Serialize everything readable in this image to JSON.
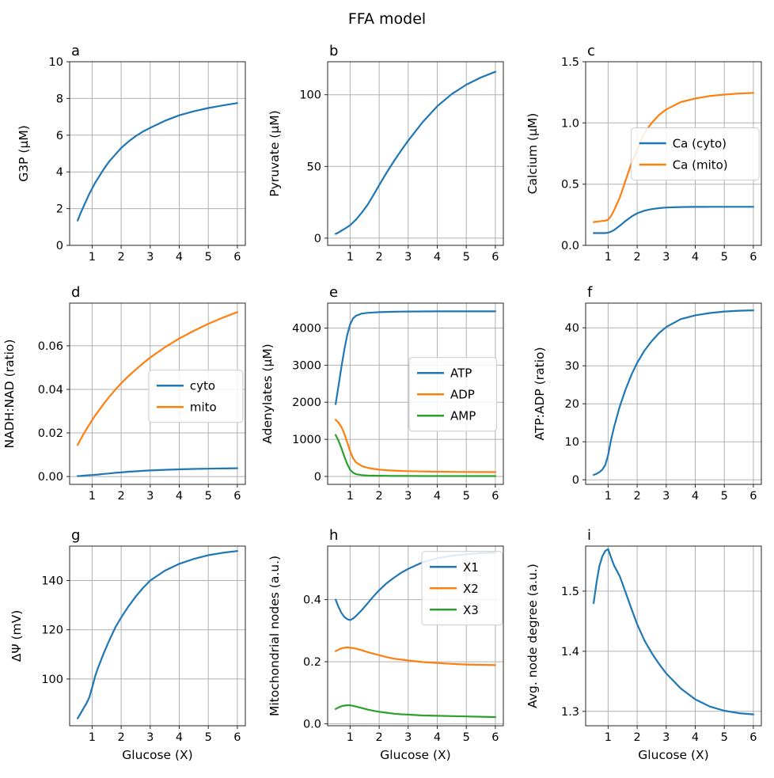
{
  "title": "FFA model",
  "colors": {
    "C0": "#1f77b4",
    "C1": "#ff7f0e",
    "C2": "#2ca02c",
    "grid": "#b0b0b0",
    "spine": "#262626",
    "legend_border": "#cccccc",
    "background": "#ffffff"
  },
  "chart_data": {
    "type": "line",
    "suptitle": "FFA model",
    "xlabel": "Glucose (X)",
    "xlim": [
      0.225,
      6.275
    ],
    "x_shared": [
      0.5,
      0.6,
      0.7,
      0.8,
      0.9,
      1.0,
      1.1,
      1.2,
      1.4,
      1.6,
      1.8,
      2.0,
      2.25,
      2.5,
      2.75,
      3.0,
      3.5,
      4.0,
      4.5,
      5.0,
      5.5,
      6.0
    ],
    "xtick_values": [
      1,
      2,
      3,
      4,
      5,
      6
    ],
    "xtick_labels": [
      "1",
      "2",
      "3",
      "4",
      "5",
      "6"
    ],
    "grid": true,
    "panels": [
      {
        "id": "a",
        "ylabel": "G3P (µM)",
        "xlabel": "",
        "ylim": [
          0,
          10
        ],
        "ytick_values": [
          0,
          2,
          4,
          6,
          8,
          10
        ],
        "ytick_labels": [
          "0",
          "2",
          "4",
          "6",
          "8",
          "10"
        ],
        "legend": null,
        "series": [
          {
            "name": "G3P",
            "color": "#1f77b4",
            "y": [
              1.35,
              1.75,
              2.1,
              2.45,
              2.8,
              3.1,
              3.4,
              3.65,
              4.15,
              4.6,
              4.95,
              5.3,
              5.65,
              5.95,
              6.2,
              6.4,
              6.78,
              7.08,
              7.3,
              7.48,
              7.62,
              7.75
            ]
          }
        ]
      },
      {
        "id": "b",
        "ylabel": "Pyruvate (µM)",
        "xlabel": "",
        "ylim": [
          -5,
          123
        ],
        "ytick_values": [
          0,
          50,
          100
        ],
        "ytick_labels": [
          "0",
          "50",
          "100"
        ],
        "legend": null,
        "series": [
          {
            "name": "Pyruvate",
            "color": "#1f77b4",
            "y": [
              3,
              4,
              5.2,
              6.4,
              7.7,
              9,
              11,
              13,
              17.8,
              23.3,
              30,
              37,
              45.5,
              53.5,
              61,
              68,
              81,
              92,
              100.5,
              107,
              112,
              116
            ]
          }
        ]
      },
      {
        "id": "c",
        "ylabel": "Calcium (µM)",
        "xlabel": "",
        "ylim": [
          0,
          1.5
        ],
        "ytick_values": [
          0.0,
          0.5,
          1.0,
          1.5
        ],
        "ytick_labels": [
          "0.0",
          "0.5",
          "1.0",
          "1.5"
        ],
        "legend": {
          "x": 0.26,
          "y": 0.36
        },
        "series": [
          {
            "name": "Ca (cyto)",
            "color": "#1f77b4",
            "y": [
              0.1,
              0.1,
              0.1,
              0.1,
              0.1,
              0.104,
              0.112,
              0.125,
              0.16,
              0.2,
              0.235,
              0.262,
              0.283,
              0.296,
              0.304,
              0.309,
              0.313,
              0.314,
              0.315,
              0.315,
              0.315,
              0.315
            ]
          },
          {
            "name": "Ca (mito)",
            "color": "#ff7f0e",
            "y": [
              0.19,
              0.193,
              0.196,
              0.199,
              0.202,
              0.21,
              0.24,
              0.285,
              0.39,
              0.53,
              0.67,
              0.78,
              0.92,
              1.0,
              1.065,
              1.11,
              1.17,
              1.2,
              1.22,
              1.232,
              1.24,
              1.245
            ]
          }
        ]
      },
      {
        "id": "d",
        "ylabel": "NADH:NAD (ratio)",
        "xlabel": "",
        "ylim": [
          -0.0036,
          0.0796
        ],
        "ytick_values": [
          0.0,
          0.02,
          0.04,
          0.06
        ],
        "ytick_labels": [
          "0.00",
          "0.02",
          "0.04",
          "0.06"
        ],
        "legend": {
          "x": 0.45,
          "y": 0.37
        },
        "series": [
          {
            "name": "cyto",
            "color": "#1f77b4",
            "y": [
              0.0002,
              0.0003,
              0.0004,
              0.0005,
              0.0006,
              0.0007,
              0.0008,
              0.0009,
              0.0012,
              0.0014,
              0.0017,
              0.0019,
              0.0022,
              0.0024,
              0.0026,
              0.0028,
              0.0031,
              0.0033,
              0.0035,
              0.0036,
              0.0037,
              0.0038
            ]
          },
          {
            "name": "mito",
            "color": "#ff7f0e",
            "y": [
              0.0145,
              0.017,
              0.0194,
              0.0216,
              0.0238,
              0.0259,
              0.0279,
              0.0298,
              0.0334,
              0.0368,
              0.0399,
              0.0428,
              0.0461,
              0.0491,
              0.052,
              0.0546,
              0.0593,
              0.0634,
              0.0669,
              0.0701,
              0.0729,
              0.0755
            ]
          }
        ]
      },
      {
        "id": "e",
        "ylabel": "Adenylates (µM)",
        "xlabel": "",
        "ylim": [
          -214,
          4672
        ],
        "ytick_values": [
          0,
          1000,
          2000,
          3000,
          4000
        ],
        "ytick_labels": [
          "0",
          "1000",
          "2000",
          "3000",
          "4000"
        ],
        "legend": {
          "x": 0.464,
          "y": 0.3
        },
        "series": [
          {
            "name": "ATP",
            "color": "#1f77b4",
            "y": [
              1950,
              2450,
              2950,
              3420,
              3820,
              4100,
              4260,
              4330,
              4390,
              4410,
              4420,
              4428,
              4435,
              4440,
              4443,
              4445,
              4448,
              4450,
              4450,
              4450,
              4450,
              4450
            ]
          },
          {
            "name": "ADP",
            "color": "#ff7f0e",
            "y": [
              1530,
              1450,
              1330,
              1150,
              920,
              680,
              490,
              380,
              280,
              235,
              205,
              185,
              168,
              157,
              149,
              143,
              134,
              128,
              124,
              121,
              119,
              117
            ]
          },
          {
            "name": "AMP",
            "color": "#2ca02c",
            "y": [
              1120,
              960,
              760,
              540,
              330,
              180,
              100,
              62,
              35,
              26,
              21,
              18,
              16,
              14,
              13,
              12,
              11,
              10,
              10,
              9,
              9,
              9
            ]
          }
        ]
      },
      {
        "id": "f",
        "ylabel": "ATP:ADP (ratio)",
        "xlabel": "",
        "ylim": [
          -1.2,
          46.5
        ],
        "ytick_values": [
          0,
          10,
          20,
          30,
          40
        ],
        "ytick_labels": [
          "0",
          "10",
          "20",
          "30",
          "40"
        ],
        "legend": null,
        "series": [
          {
            "name": "ATP:ADP",
            "color": "#1f77b4",
            "y": [
              1.3,
              1.6,
              2.0,
              2.7,
              3.9,
              6.5,
              10.5,
              13.8,
              19.3,
              23.8,
              27.6,
              30.8,
              34.0,
              36.5,
              38.6,
              40.2,
              42.3,
              43.3,
              43.9,
              44.3,
              44.5,
              44.6
            ]
          }
        ]
      },
      {
        "id": "g",
        "ylabel": "ΔΨ (mV)",
        "xlabel": "Glucose (X)",
        "ylim": [
          81,
          154
        ],
        "ytick_values": [
          100,
          120,
          140
        ],
        "ytick_labels": [
          "100",
          "120",
          "140"
        ],
        "legend": null,
        "series": [
          {
            "name": "DeltaPsi",
            "color": "#1f77b4",
            "y": [
              84,
              86,
              88,
              90,
              92.5,
              96.5,
              101,
              104.5,
              110.5,
              116,
              121,
              125,
              129.5,
              133.5,
              137,
              140,
              144,
              146.8,
              148.8,
              150.3,
              151.3,
              152
            ]
          }
        ]
      },
      {
        "id": "h",
        "ylabel": "Mitochondrial nodes (a.u.)",
        "xlabel": "Glucose (X)",
        "ylim": [
          -0.006,
          0.572
        ],
        "ytick_values": [
          0.0,
          0.2,
          0.4
        ],
        "ytick_labels": [
          "0.0",
          "0.2",
          "0.4"
        ],
        "legend": {
          "x": 0.536,
          "y": 0.03
        },
        "series": [
          {
            "name": "X1",
            "color": "#1f77b4",
            "y": [
              0.4,
              0.376,
              0.357,
              0.344,
              0.337,
              0.334,
              0.339,
              0.347,
              0.366,
              0.388,
              0.41,
              0.43,
              0.452,
              0.47,
              0.486,
              0.499,
              0.52,
              0.533,
              0.541,
              0.546,
              0.549,
              0.551
            ]
          },
          {
            "name": "X2",
            "color": "#ff7f0e",
            "y": [
              0.234,
              0.239,
              0.243,
              0.245,
              0.246,
              0.245,
              0.244,
              0.242,
              0.237,
              0.231,
              0.226,
              0.221,
              0.215,
              0.21,
              0.207,
              0.204,
              0.199,
              0.196,
              0.193,
              0.191,
              0.19,
              0.189
            ]
          },
          {
            "name": "X3",
            "color": "#2ca02c",
            "y": [
              0.048,
              0.053,
              0.057,
              0.059,
              0.06,
              0.06,
              0.058,
              0.056,
              0.051,
              0.046,
              0.042,
              0.039,
              0.036,
              0.033,
              0.031,
              0.03,
              0.027,
              0.026,
              0.025,
              0.024,
              0.023,
              0.022
            ]
          }
        ]
      },
      {
        "id": "i",
        "ylabel": "Avg. node degree (a.u.)",
        "xlabel": "Glucose (X)",
        "ylim": [
          1.276,
          1.575
        ],
        "ytick_values": [
          1.3,
          1.4,
          1.5
        ],
        "ytick_labels": [
          "1.3",
          "1.4",
          "1.5"
        ],
        "legend": null,
        "series": [
          {
            "name": "Avg. node degree",
            "color": "#1f77b4",
            "y": [
              1.48,
              1.515,
              1.542,
              1.558,
              1.567,
              1.57,
              1.556,
              1.543,
              1.525,
              1.498,
              1.471,
              1.445,
              1.418,
              1.397,
              1.379,
              1.363,
              1.338,
              1.32,
              1.308,
              1.301,
              1.297,
              1.295
            ]
          }
        ]
      }
    ]
  }
}
